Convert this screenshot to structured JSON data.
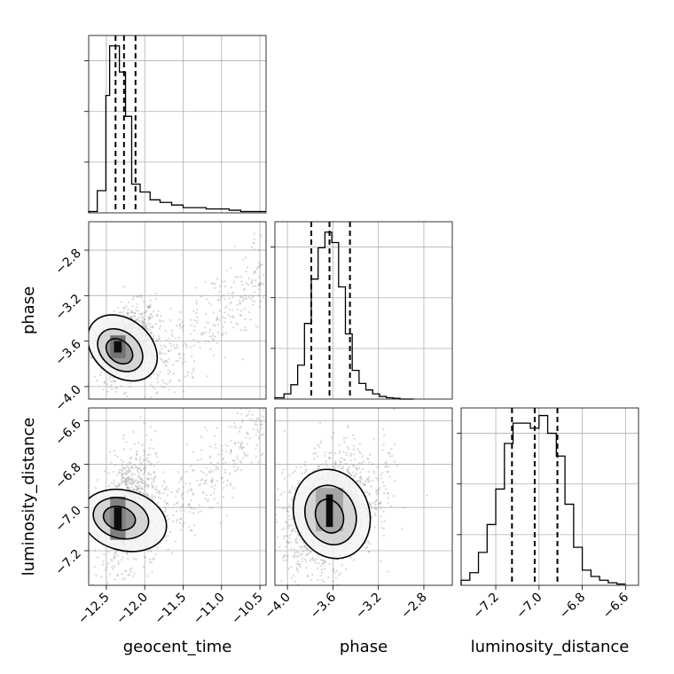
{
  "colors": {
    "line": "#000000",
    "grid": "#b0b0b0",
    "scatter": "#808080",
    "background": "#ffffff"
  },
  "chart_data": {
    "type": "corner",
    "parameters": [
      "geocent_time",
      "phase",
      "luminosity_distance"
    ],
    "axis_labels": {
      "geocent_time": "geocent_time",
      "phase": "phase",
      "luminosity_distance": "luminosity_distance"
    },
    "ranges": {
      "geocent_time": [
        -12.73,
        -10.42
      ],
      "phase": [
        -4.11,
        -2.55
      ],
      "luminosity_distance": [
        -7.36,
        -6.54
      ]
    },
    "ticks": {
      "geocent_time": [
        {
          "v": -12.5,
          "label": "−12.5"
        },
        {
          "v": -12.0,
          "label": "−12.0"
        },
        {
          "v": -11.5,
          "label": "−11.5"
        },
        {
          "v": -11.0,
          "label": "−11.0"
        },
        {
          "v": -10.5,
          "label": "−10.5"
        }
      ],
      "phase": [
        {
          "v": -4.0,
          "label": "−4.0"
        },
        {
          "v": -3.6,
          "label": "−3.6"
        },
        {
          "v": -3.2,
          "label": "−3.2"
        },
        {
          "v": -2.8,
          "label": "−2.8"
        }
      ],
      "luminosity_distance": [
        {
          "v": -7.2,
          "label": "−7.2"
        },
        {
          "v": -7.0,
          "label": "−7.0"
        },
        {
          "v": -6.8,
          "label": "−6.8"
        },
        {
          "v": -6.6,
          "label": "−6.6"
        }
      ]
    },
    "diag_hist_yticks": 3,
    "histograms": {
      "geocent_time": {
        "edges": [
          -12.73,
          -12.618,
          -12.506,
          -12.457,
          -12.4,
          -12.33,
          -12.25,
          -12.17,
          -12.06,
          -11.93,
          -11.8,
          -11.65,
          -11.5,
          -11.35,
          -11.2,
          -11.05,
          -10.9,
          -10.75,
          -10.6,
          -10.42
        ],
        "counts": [
          0.5,
          8.5,
          45,
          64,
          64,
          54,
          37,
          11,
          8,
          5,
          4,
          3,
          2,
          2,
          1.5,
          1.5,
          1,
          0.5,
          0.5
        ],
        "quantiles": [
          -12.38,
          -12.27,
          -12.12
        ],
        "ymax": 68
      },
      "phase": {
        "edges": [
          -4.11,
          -4.03,
          -3.97,
          -3.91,
          -3.85,
          -3.79,
          -3.73,
          -3.67,
          -3.61,
          -3.55,
          -3.49,
          -3.43,
          -3.37,
          -3.31,
          -3.25,
          -3.19,
          -3.13,
          -3.07,
          -3.01,
          -2.95,
          -2.89
        ],
        "counts": [
          0.5,
          2,
          5.5,
          13,
          29,
          46,
          58,
          64,
          60,
          43,
          25,
          11,
          6,
          3.5,
          2,
          1,
          0.5,
          0.3,
          0,
          0
        ],
        "quantiles": [
          -3.79,
          -3.63,
          -3.45
        ],
        "ymax": 68
      },
      "luminosity_distance": {
        "edges": [
          -7.36,
          -7.32,
          -7.28,
          -7.24,
          -7.2,
          -7.16,
          -7.12,
          -7.08,
          -7.04,
          -7.0,
          -6.96,
          -6.92,
          -6.88,
          -6.84,
          -6.8,
          -6.76,
          -6.72,
          -6.68,
          -6.64,
          -6.6
        ],
        "counts": [
          2,
          5,
          13,
          24,
          38,
          56,
          64,
          64,
          62,
          67,
          60,
          51,
          32,
          15,
          6,
          3.5,
          2,
          1,
          0.5
        ],
        "quantiles": [
          -7.125,
          -7.02,
          -6.915
        ],
        "ymax": 70
      }
    },
    "pairs": [
      {
        "x": "geocent_time",
        "y": "phase",
        "scatter": {
          "core": {
            "mx": -12.2,
            "my": -3.62,
            "sx": 0.17,
            "sy": 0.16,
            "n": 800
          },
          "trail": {
            "x": [
              -12.0,
              -10.45
            ],
            "y": [
              -3.9,
              -3.05
            ],
            "n": 320
          }
        },
        "contours": [
          {
            "cx": -12.29,
            "cy": -3.66,
            "rx": 0.37,
            "ry": 0.34,
            "rot": -50
          },
          {
            "cx": -12.32,
            "cy": -3.68,
            "rx": 0.24,
            "ry": 0.22,
            "rot": -50
          },
          {
            "cx": -12.33,
            "cy": -3.69,
            "rx": 0.14,
            "ry": 0.13,
            "rot": -50
          }
        ],
        "density": [
          {
            "x": -12.45,
            "y": -3.75,
            "w": 0.2,
            "h": 0.2,
            "level": 0.55
          },
          {
            "x": -12.4,
            "y": -3.7,
            "w": 0.1,
            "h": 0.1,
            "level": 0.95
          }
        ]
      },
      {
        "x": "geocent_time",
        "y": "luminosity_distance",
        "scatter": {
          "core": {
            "mx": -12.2,
            "my": -7.0,
            "sx": 0.17,
            "sy": 0.13,
            "n": 800
          },
          "trail": {
            "x": [
              -12.0,
              -10.45
            ],
            "y": [
              -7.15,
              -6.6
            ],
            "n": 320
          }
        },
        "contours": [
          {
            "cx": -12.27,
            "cy": -7.06,
            "rx": 0.39,
            "ry": 0.2,
            "rot": -75
          },
          {
            "cx": -12.31,
            "cy": -7.05,
            "rx": 0.26,
            "ry": 0.13,
            "rot": -75
          },
          {
            "cx": -12.33,
            "cy": -7.05,
            "rx": 0.15,
            "ry": 0.075,
            "rot": -75
          }
        ],
        "density": [
          {
            "x": -12.45,
            "y": -7.15,
            "w": 0.2,
            "h": 0.2,
            "level": 0.5
          },
          {
            "x": -12.4,
            "y": -7.1,
            "w": 0.1,
            "h": 0.1,
            "level": 0.95
          }
        ]
      },
      {
        "x": "phase",
        "y": "luminosity_distance",
        "scatter": {
          "core": {
            "mx": -3.63,
            "my": -7.02,
            "sx": 0.2,
            "sy": 0.13,
            "n": 1400
          },
          "trail": {
            "x": [
              -3.3,
              -3.05
            ],
            "y": [
              -7.1,
              -6.7
            ],
            "n": 40
          }
        },
        "contours": [
          {
            "cx": -3.61,
            "cy": -7.03,
            "rx": 0.33,
            "ry": 0.21,
            "rot": -20
          },
          {
            "cx": -3.62,
            "cy": -7.035,
            "rx": 0.22,
            "ry": 0.14,
            "rot": -20
          },
          {
            "cx": -3.63,
            "cy": -7.04,
            "rx": 0.12,
            "ry": 0.08,
            "rot": -20
          }
        ],
        "density": [
          {
            "x": -3.75,
            "y": -7.11,
            "w": 0.24,
            "h": 0.2,
            "level": 0.35
          },
          {
            "x": -3.66,
            "y": -7.09,
            "w": 0.06,
            "h": 0.15,
            "level": 0.95
          }
        ]
      }
    ]
  }
}
